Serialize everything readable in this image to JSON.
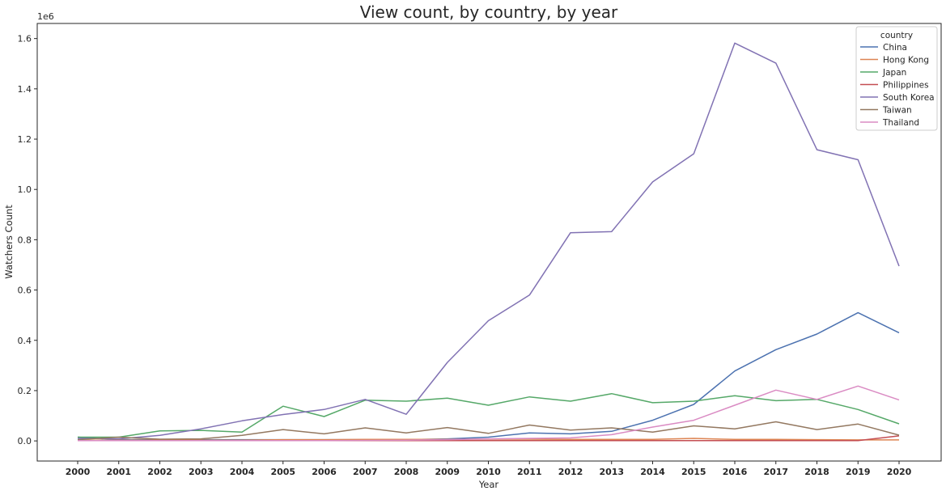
{
  "chart_data": {
    "type": "line",
    "title": "View count, by country, by year",
    "xlabel": "Year",
    "ylabel": "Watchers Count",
    "y_offset_text": "1e6",
    "x": [
      2000,
      2001,
      2002,
      2003,
      2004,
      2005,
      2006,
      2007,
      2008,
      2009,
      2010,
      2011,
      2012,
      2013,
      2014,
      2015,
      2016,
      2017,
      2018,
      2019,
      2020
    ],
    "x_tick_labels": [
      "2000",
      "2001",
      "2002",
      "2003",
      "2004",
      "2005",
      "2006",
      "2007",
      "2008",
      "2009",
      "2010",
      "2011",
      "2012",
      "2013",
      "2014",
      "2015",
      "2016",
      "2017",
      "2018",
      "2019",
      "2020"
    ],
    "ylim": [
      -80000,
      1660000
    ],
    "y_ticks": [
      0,
      200000,
      400000,
      600000,
      800000,
      1000000,
      1200000,
      1400000,
      1600000
    ],
    "y_tick_labels": [
      "0.0",
      "0.2",
      "0.4",
      "0.6",
      "0.8",
      "1.0",
      "1.2",
      "1.4",
      "1.6"
    ],
    "grid": false,
    "legend": {
      "title": "country",
      "placement": "top-right"
    },
    "series": [
      {
        "name": "China",
        "color": "#4c72b0",
        "values": [
          15000,
          5000,
          5000,
          5000,
          5000,
          5000,
          5000,
          5000,
          5000,
          8000,
          15000,
          32000,
          28000,
          38000,
          82000,
          145000,
          278000,
          363000,
          425000,
          510000,
          430000
        ]
      },
      {
        "name": "Hong Kong",
        "color": "#dd8452",
        "values": [
          2000,
          3000,
          3000,
          3000,
          3000,
          5000,
          5000,
          6000,
          6000,
          6000,
          7000,
          7000,
          6000,
          6000,
          6000,
          10000,
          6000,
          6000,
          5000,
          4000,
          4000
        ]
      },
      {
        "name": "Japan",
        "color": "#55a868",
        "values": [
          15000,
          15000,
          40000,
          42000,
          35000,
          138000,
          97000,
          162000,
          158000,
          170000,
          142000,
          175000,
          158000,
          188000,
          152000,
          158000,
          180000,
          160000,
          165000,
          125000,
          68000
        ]
      },
      {
        "name": "Philippines",
        "color": "#c44e52",
        "values": [
          1000,
          1000,
          1000,
          1000,
          1000,
          1000,
          1000,
          1000,
          1000,
          1000,
          1000,
          1000,
          1000,
          1000,
          1000,
          1000,
          1000,
          1000,
          1000,
          1000,
          20000
        ]
      },
      {
        "name": "South Korea",
        "color": "#8172b3",
        "values": [
          10000,
          8000,
          22000,
          48000,
          80000,
          105000,
          125000,
          165000,
          106000,
          312000,
          478000,
          580000,
          828000,
          832000,
          1030000,
          1142000,
          1582000,
          1502000,
          1158000,
          1118000,
          695000
        ]
      },
      {
        "name": "Taiwan",
        "color": "#937860",
        "values": [
          5000,
          15000,
          7000,
          8000,
          22000,
          45000,
          28000,
          52000,
          32000,
          53000,
          30000,
          63000,
          43000,
          52000,
          35000,
          60000,
          48000,
          76000,
          45000,
          67000,
          23000
        ]
      },
      {
        "name": "Thailand",
        "color": "#da8bc3",
        "values": [
          1000,
          1000,
          1000,
          1000,
          1000,
          1000,
          1000,
          2000,
          3000,
          5000,
          8000,
          10000,
          12000,
          25000,
          55000,
          82000,
          142000,
          202000,
          165000,
          218000,
          163000
        ]
      }
    ]
  }
}
